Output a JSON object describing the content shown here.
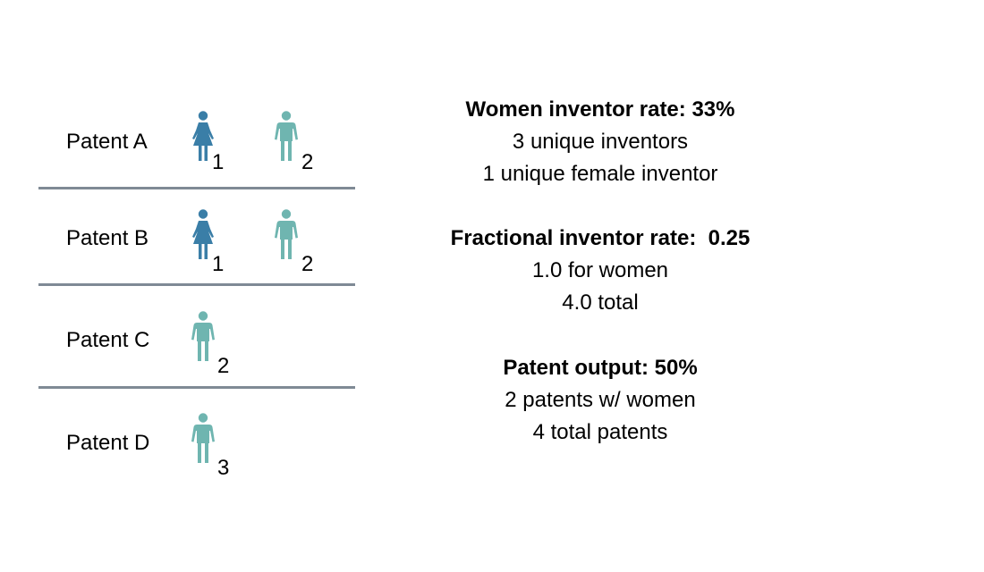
{
  "colors": {
    "female_inventor": "#3a7ea7",
    "male_inventor": "#6fb5b0",
    "divider": "#7f8a95"
  },
  "patents": [
    {
      "label": "Patent A",
      "inventors": [
        {
          "id": "1",
          "gender": "female",
          "icon": "woman-icon"
        },
        {
          "id": "2",
          "gender": "male",
          "icon": "man-icon"
        }
      ]
    },
    {
      "label": "Patent B",
      "inventors": [
        {
          "id": "1",
          "gender": "female",
          "icon": "woman-icon"
        },
        {
          "id": "2",
          "gender": "male",
          "icon": "man-icon"
        }
      ]
    },
    {
      "label": "Patent C",
      "inventors": [
        {
          "id": "2",
          "gender": "male",
          "icon": "man-icon"
        }
      ]
    },
    {
      "label": "Patent D",
      "inventors": [
        {
          "id": "3",
          "gender": "male",
          "icon": "man-icon"
        }
      ]
    }
  ],
  "metrics": [
    {
      "heading": "Women inventor rate: 33%",
      "lines": [
        "3 unique inventors",
        "1 unique female inventor"
      ]
    },
    {
      "heading": "Fractional inventor rate:  0.25",
      "lines": [
        "1.0 for women",
        "4.0 total"
      ]
    },
    {
      "heading": "Patent output: 50%",
      "lines": [
        "2 patents w/ women",
        "4 total patents"
      ]
    }
  ]
}
